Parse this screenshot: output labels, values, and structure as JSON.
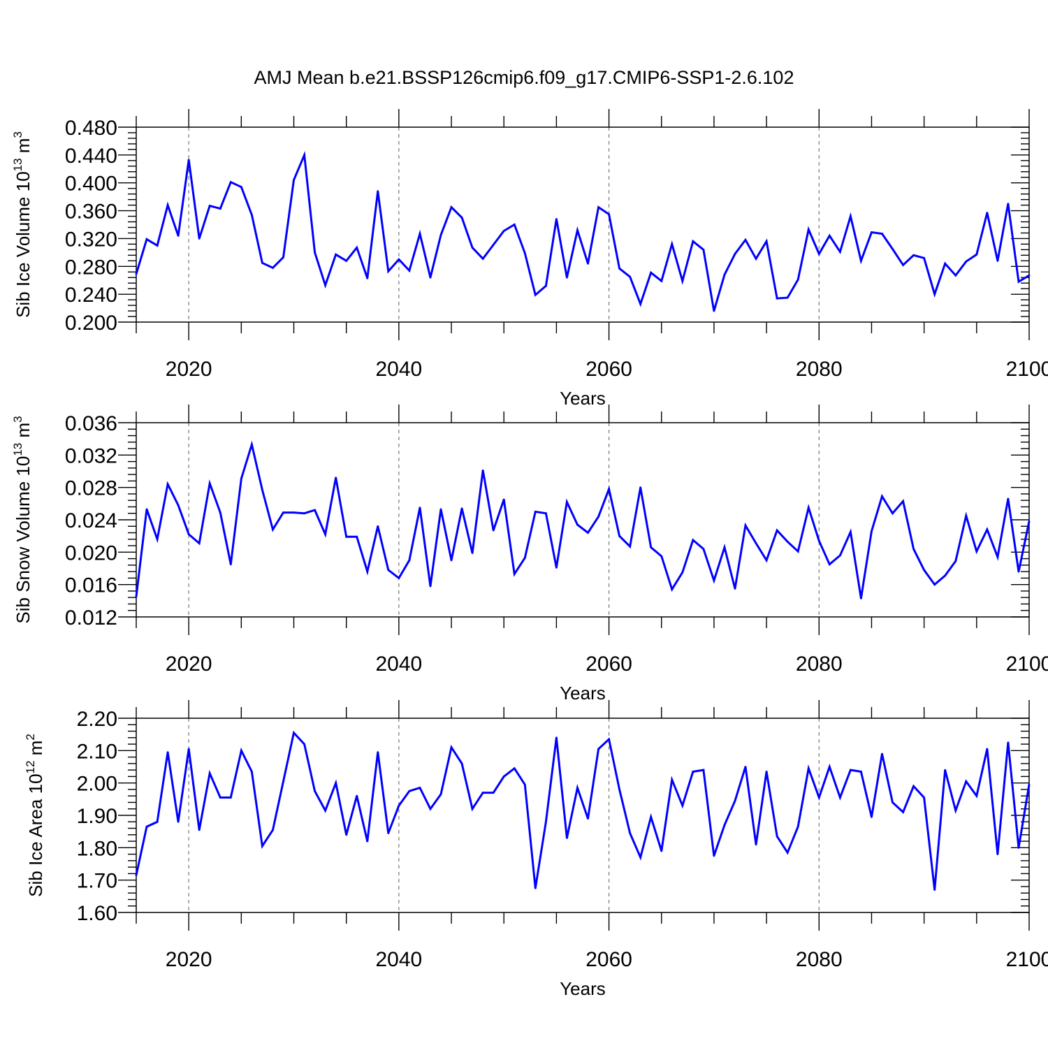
{
  "figure": {
    "title": "AMJ Mean b.e21.BSSP126cmip6.f09_g17.CMIP6-SSP1-2.6.102"
  },
  "chart_data": [
    {
      "type": "line",
      "title": "AMJ Mean b.e21.BSSP126cmip6.f09_g17.CMIP6-SSP1-2.6.102",
      "xlabel": "Years",
      "ylabel_base": "Sib Ice Volume 10",
      "ylabel_exp": "13",
      "ylabel_unit": "m",
      "ylabel_unit_exp": "3",
      "xlim": [
        2015,
        2100
      ],
      "ylim": [
        0.2,
        0.48
      ],
      "xticks": [
        2020,
        2040,
        2060,
        2080,
        2100
      ],
      "yticks": [
        "0.200",
        "0.240",
        "0.280",
        "0.320",
        "0.360",
        "0.400",
        "0.440",
        "0.480"
      ],
      "grid": "dashed vertical at major x ticks",
      "line_color": "#0000ff",
      "series": [
        {
          "name": "Sib Ice Volume",
          "x_start": 2015,
          "values": [
            0.269,
            0.319,
            0.31,
            0.368,
            0.324,
            0.433,
            0.32,
            0.367,
            0.363,
            0.401,
            0.394,
            0.354,
            0.285,
            0.278,
            0.293,
            0.404,
            0.44,
            0.3,
            0.253,
            0.297,
            0.288,
            0.307,
            0.263,
            0.388,
            0.273,
            0.29,
            0.274,
            0.327,
            0.264,
            0.325,
            0.365,
            0.35,
            0.307,
            0.291,
            0.311,
            0.331,
            0.34,
            0.299,
            0.239,
            0.252,
            0.348,
            0.264,
            0.332,
            0.284,
            0.365,
            0.355,
            0.277,
            0.265,
            0.226,
            0.271,
            0.259,
            0.312,
            0.259,
            0.316,
            0.304,
            0.216,
            0.268,
            0.298,
            0.318,
            0.291,
            0.316,
            0.234,
            0.235,
            0.261,
            0.333,
            0.298,
            0.324,
            0.301,
            0.352,
            0.288,
            0.329,
            0.327,
            0.305,
            0.282,
            0.296,
            0.292,
            0.24,
            0.284,
            0.267,
            0.287,
            0.297,
            0.357,
            0.288,
            0.37,
            0.258,
            0.267
          ]
        }
      ]
    },
    {
      "type": "line",
      "xlabel": "Years",
      "ylabel_base": "Sib Snow Volume 10",
      "ylabel_exp": "13",
      "ylabel_unit": "m",
      "ylabel_unit_exp": "3",
      "xlim": [
        2015,
        2100
      ],
      "ylim": [
        0.012,
        0.036
      ],
      "xticks": [
        2020,
        2040,
        2060,
        2080,
        2100
      ],
      "yticks": [
        "0.012",
        "0.016",
        "0.020",
        "0.024",
        "0.028",
        "0.032",
        "0.036"
      ],
      "grid": "dashed vertical at major x ticks",
      "line_color": "#0000ff",
      "series": [
        {
          "name": "Sib Snow Volume",
          "x_start": 2015,
          "values": [
            0.0145,
            0.0253,
            0.0216,
            0.0284,
            0.0258,
            0.0222,
            0.0211,
            0.0285,
            0.0249,
            0.0185,
            0.0291,
            0.0333,
            0.0277,
            0.0228,
            0.0249,
            0.0249,
            0.0248,
            0.0252,
            0.0222,
            0.0292,
            0.0219,
            0.0219,
            0.0176,
            0.0232,
            0.0178,
            0.0168,
            0.019,
            0.0255,
            0.0158,
            0.0253,
            0.019,
            0.0254,
            0.0199,
            0.0301,
            0.0227,
            0.0265,
            0.0173,
            0.0193,
            0.025,
            0.0248,
            0.0181,
            0.0262,
            0.0234,
            0.0224,
            0.0244,
            0.0278,
            0.022,
            0.0207,
            0.028,
            0.0206,
            0.0195,
            0.0154,
            0.0175,
            0.0215,
            0.0204,
            0.0165,
            0.0206,
            0.0155,
            0.0233,
            0.0211,
            0.019,
            0.0227,
            0.0213,
            0.0201,
            0.0255,
            0.0214,
            0.0185,
            0.0196,
            0.0225,
            0.0143,
            0.0226,
            0.0269,
            0.0248,
            0.0263,
            0.0204,
            0.0178,
            0.016,
            0.0171,
            0.0189,
            0.0245,
            0.0201,
            0.0228,
            0.0194,
            0.0266,
            0.0176,
            0.0238
          ]
        }
      ]
    },
    {
      "type": "line",
      "xlabel": "Years",
      "ylabel_base": "Sib Ice Area 10",
      "ylabel_exp": "12",
      "ylabel_unit": "m",
      "ylabel_unit_exp": "2",
      "xlim": [
        2015,
        2100
      ],
      "ylim": [
        1.6,
        2.2
      ],
      "xticks": [
        2020,
        2040,
        2060,
        2080,
        2100
      ],
      "yticks": [
        "1.60",
        "1.70",
        "1.80",
        "1.90",
        "2.00",
        "2.10",
        "2.20"
      ],
      "grid": "dashed vertical at major x ticks",
      "line_color": "#0000ff",
      "series": [
        {
          "name": "Sib Ice Area",
          "x_start": 2015,
          "values": [
            1.715,
            1.865,
            1.88,
            2.095,
            1.88,
            2.105,
            1.855,
            2.03,
            1.955,
            1.955,
            2.1,
            2.035,
            1.805,
            1.855,
            2.005,
            2.155,
            2.12,
            1.975,
            1.915,
            2.0,
            1.84,
            1.96,
            1.82,
            2.095,
            1.845,
            1.93,
            1.975,
            1.985,
            1.92,
            1.965,
            2.11,
            2.06,
            1.92,
            1.97,
            1.97,
            2.02,
            2.045,
            1.995,
            1.675,
            1.88,
            2.14,
            1.83,
            1.985,
            1.89,
            2.105,
            2.135,
            1.98,
            1.845,
            1.77,
            1.895,
            1.79,
            2.01,
            1.93,
            2.035,
            2.04,
            1.775,
            1.87,
            1.945,
            2.05,
            1.81,
            2.035,
            1.835,
            1.785,
            1.865,
            2.045,
            1.955,
            2.05,
            1.955,
            2.04,
            2.035,
            1.895,
            2.09,
            1.94,
            1.91,
            1.99,
            1.955,
            1.67,
            2.04,
            1.915,
            2.005,
            1.96,
            2.105,
            1.78,
            2.125,
            1.8,
            1.995
          ]
        }
      ]
    }
  ]
}
